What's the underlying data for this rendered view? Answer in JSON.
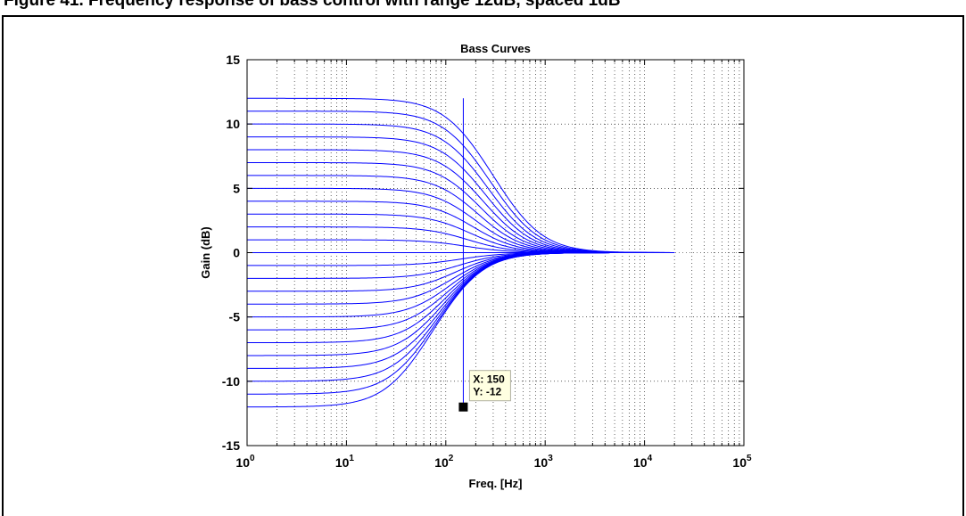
{
  "caption": "Figure 41. Frequency response of bass control with range 12dB, spaced 1dB",
  "chart_data": {
    "type": "line",
    "title": "Bass Curves",
    "xlabel": "Freq. [Hz]",
    "ylabel": "Gain (dB)",
    "xscale": "log",
    "xlim": [
      1,
      100000
    ],
    "ylim": [
      -15,
      15
    ],
    "grid": true,
    "x_ticks": [
      {
        "base": "10",
        "exp": "0"
      },
      {
        "base": "10",
        "exp": "1"
      },
      {
        "base": "10",
        "exp": "2"
      },
      {
        "base": "10",
        "exp": "3"
      },
      {
        "base": "10",
        "exp": "4"
      },
      {
        "base": "10",
        "exp": "5"
      }
    ],
    "y_ticks": [
      "15",
      "10",
      "5",
      "0",
      "-5",
      "-10",
      "-15"
    ],
    "series_gains_db": [
      -12,
      -11,
      -10,
      -9,
      -8,
      -7,
      -6,
      -5,
      -4,
      -3,
      -2,
      -1,
      0,
      1,
      2,
      3,
      4,
      5,
      6,
      7,
      8,
      9,
      10,
      11,
      12
    ],
    "corner_frequency_hz": 150,
    "x_end_hz": 20000,
    "line_color": "#0000ff",
    "marker_line": {
      "x": 150,
      "y_from": -12,
      "y_to": 12
    },
    "datatip": {
      "x": 150,
      "y": -12,
      "label_x": "X: 150",
      "label_y": "Y: -12"
    }
  }
}
